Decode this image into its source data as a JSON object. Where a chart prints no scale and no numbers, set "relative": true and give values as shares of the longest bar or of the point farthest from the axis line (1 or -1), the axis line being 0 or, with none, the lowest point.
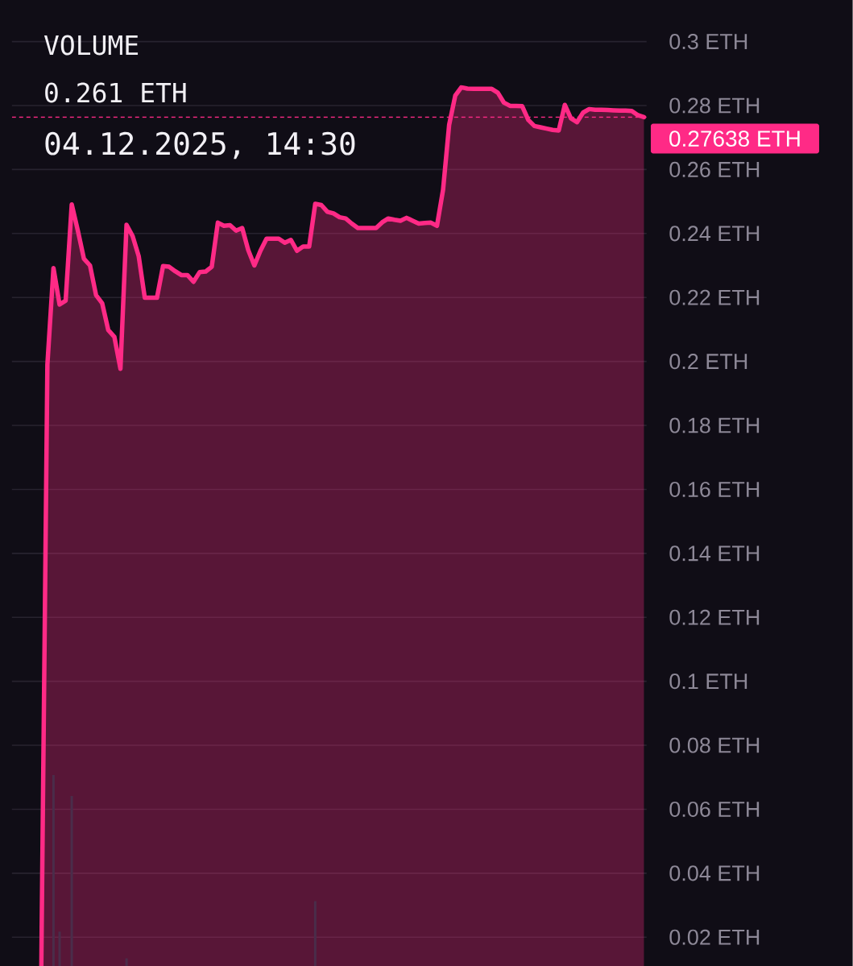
{
  "chart_data": [
    {
      "type": "area",
      "categories": [
        null,
        null,
        null,
        null,
        null,
        null,
        null,
        null,
        null,
        null,
        null,
        null,
        null,
        null,
        null,
        null,
        null,
        null,
        null,
        null,
        null,
        null,
        null,
        null,
        null,
        null,
        null,
        null,
        null,
        null,
        null,
        null,
        null,
        null,
        null,
        null,
        null,
        null,
        null,
        null,
        null,
        null,
        null,
        null,
        null,
        null,
        null,
        null,
        null,
        null,
        null,
        null,
        null,
        null,
        null,
        null,
        null,
        null,
        null,
        null,
        null,
        null,
        null,
        null,
        null,
        null,
        null,
        null,
        null,
        null,
        null,
        null,
        null,
        null,
        null,
        null,
        null,
        null,
        null,
        null,
        null,
        null,
        null,
        null,
        null,
        null,
        null,
        null,
        null,
        null,
        null,
        null,
        null,
        null,
        null,
        null,
        null,
        null,
        null,
        null
      ],
      "values": [
        0.011,
        0.199,
        0.2292,
        0.2178,
        0.219,
        0.2491,
        0.2409,
        0.2321,
        0.23,
        0.2207,
        0.2182,
        0.2098,
        0.2077,
        0.1977,
        0.2427,
        0.2392,
        0.2329,
        0.2199,
        0.2199,
        0.2199,
        0.2298,
        0.2296,
        0.2282,
        0.227,
        0.227,
        0.2249,
        0.2279,
        0.2281,
        0.2296,
        0.2434,
        0.2424,
        0.2426,
        0.2409,
        0.2417,
        0.2348,
        0.23,
        0.2346,
        0.2384,
        0.2384,
        0.2384,
        0.2371,
        0.238,
        0.2346,
        0.2359,
        0.2359,
        0.2493,
        0.2489,
        0.2468,
        0.2463,
        0.2451,
        0.2447,
        0.2431,
        0.2417,
        0.2417,
        0.2417,
        0.2417,
        0.2435,
        0.2447,
        0.2443,
        0.244,
        0.2449,
        0.244,
        0.2431,
        0.2433,
        0.2434,
        0.2424,
        0.2537,
        0.274,
        0.2831,
        0.2857,
        0.2853,
        0.2852,
        0.2852,
        0.2852,
        0.2852,
        0.284,
        0.2809,
        0.2799,
        0.2799,
        0.2798,
        0.2755,
        0.2736,
        0.2732,
        0.2728,
        0.2724,
        0.2722,
        0.2802,
        0.276,
        0.2748,
        0.2778,
        0.2789,
        0.2787,
        0.2787,
        0.2786,
        0.2785,
        0.2784,
        0.2784,
        0.2783,
        0.277,
        0.2764
      ],
      "color": "#ff2a86",
      "ylim": [
        0.011,
        0.313
      ],
      "yticks": [
        {
          "value": 0.02,
          "label": "0.02 ETH"
        },
        {
          "value": 0.04,
          "label": "0.04 ETH"
        },
        {
          "value": 0.06,
          "label": "0.06 ETH"
        },
        {
          "value": 0.08,
          "label": "0.08 ETH"
        },
        {
          "value": 0.1,
          "label": "0.1 ETH"
        },
        {
          "value": 0.12,
          "label": "0.12 ETH"
        },
        {
          "value": 0.14,
          "label": "0.14 ETH"
        },
        {
          "value": 0.16,
          "label": "0.16 ETH"
        },
        {
          "value": 0.18,
          "label": "0.18 ETH"
        },
        {
          "value": 0.2,
          "label": "0.2 ETH"
        },
        {
          "value": 0.22,
          "label": "0.22 ETH"
        },
        {
          "value": 0.24,
          "label": "0.24 ETH"
        },
        {
          "value": 0.26,
          "label": "0.26 ETH"
        },
        {
          "value": 0.28,
          "label": "0.28 ETH"
        },
        {
          "value": 0.3,
          "label": "0.3 ETH"
        }
      ],
      "grid": "y",
      "tick_labels": "y",
      "ref_lines": [
        {
          "axis": "y",
          "value": 0.27638,
          "label": "0.27638 ETH",
          "color": "#ff2a86",
          "line_style": "dashed"
        }
      ],
      "annotations": [
        "VOLUME",
        "0.261 ETH",
        "04.12.2025, 14:30"
      ]
    },
    {
      "type": "bar",
      "categories": [
        null,
        null,
        null,
        null,
        null,
        null,
        null,
        null,
        null,
        null,
        null,
        null,
        null,
        null,
        null,
        null,
        null,
        null,
        null,
        null,
        null,
        null,
        null,
        null,
        null,
        null,
        null,
        null,
        null,
        null,
        null,
        null,
        null,
        null,
        null,
        null,
        null,
        null,
        null,
        null,
        null,
        null,
        null,
        null,
        null,
        null,
        null,
        null,
        null,
        null,
        null,
        null,
        null,
        null,
        null,
        null,
        null,
        null,
        null,
        null,
        null,
        null,
        null,
        null,
        null,
        null,
        null,
        null,
        null,
        null,
        null,
        null,
        null,
        null,
        null,
        null,
        null,
        null,
        null,
        null,
        null,
        null,
        null,
        null,
        null,
        null,
        null,
        null,
        null,
        null,
        null,
        null,
        null,
        null,
        null,
        null,
        null,
        null,
        null,
        null
      ],
      "values": [
        null,
        null,
        1.0,
        0.18,
        null,
        0.89,
        null,
        null,
        null,
        null,
        null,
        null,
        null,
        null,
        0.04,
        null,
        null,
        null,
        null,
        null,
        null,
        null,
        null,
        null,
        null,
        null,
        null,
        null,
        null,
        null,
        null,
        null,
        null,
        null,
        null,
        null,
        null,
        null,
        null,
        null,
        null,
        null,
        null,
        null,
        null,
        0.34,
        null,
        null,
        null,
        null,
        null,
        null,
        null,
        null,
        null,
        null,
        null,
        null,
        null,
        null,
        null,
        null,
        null,
        null,
        null,
        null,
        null,
        null,
        null,
        null,
        null,
        null,
        null,
        null,
        null,
        null,
        null,
        null,
        null,
        null,
        null,
        null,
        null,
        null,
        null,
        null,
        null,
        null,
        null,
        null,
        null,
        null,
        null,
        null,
        null,
        null,
        null,
        null,
        null,
        null
      ],
      "color": "#4a2d4a",
      "relative": true,
      "tick_labels": false
    }
  ]
}
